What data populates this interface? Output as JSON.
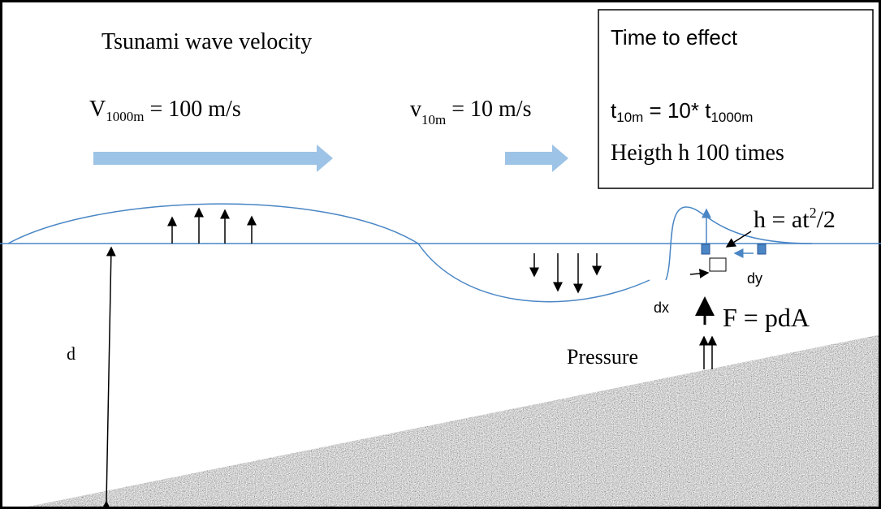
{
  "title": "Tsunami wave velocity",
  "deep_velocity": {
    "symbol": "V",
    "subscript": "1000m",
    "equation": " = 100 m/s"
  },
  "shallow_velocity": {
    "symbol": "v",
    "subscript": "10m",
    "equation": " = 10 m/s"
  },
  "info_box": {
    "heading": "Time to effect",
    "time_symbol": "t",
    "time_subscript": "10m",
    "time_equation": " = 10* t",
    "time_subscript_2": "1000m",
    "height_note": "Heigth h 100 times"
  },
  "height_formula": {
    "text": "h = at",
    "superscript": "2",
    "rest": "/2"
  },
  "labels": {
    "dy": "dy",
    "dx": "dx",
    "force": "F = pdA",
    "pressure": "Pressure",
    "depth": "d"
  }
}
